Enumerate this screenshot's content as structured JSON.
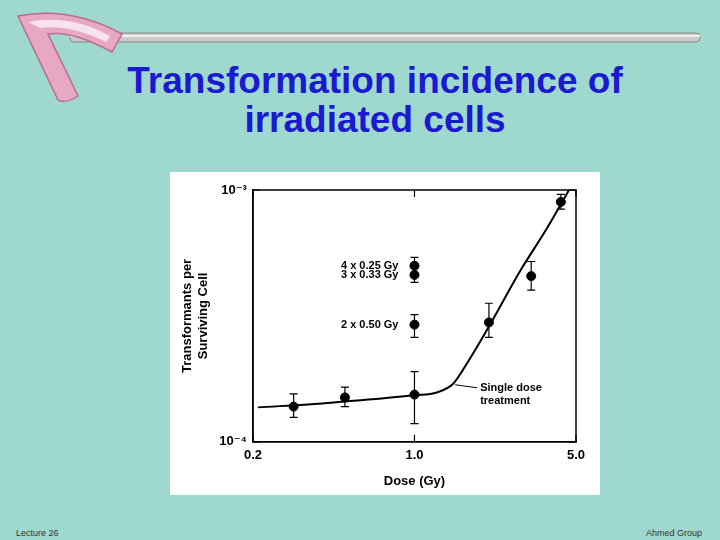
{
  "chart_data": {
    "type": "scatter",
    "title": "Transformation incidence of irradiated cells",
    "x_label": "Dose (Gy)",
    "y_label": [
      "Transformants per",
      "Surviving Cell"
    ],
    "log": true,
    "grid": false,
    "xlim": [
      0.2,
      5
    ],
    "xticks": [
      0.2,
      {
        "value": 1,
        "label": "1.0"
      },
      {
        "value": 5,
        "label": "5.0"
      }
    ],
    "ylim": [
      0.0001,
      0.001
    ],
    "yticks": [
      {
        "value": 0.0001,
        "label": "10⁻⁴"
      },
      {
        "value": 0.001,
        "label": "10⁻³"
      }
    ],
    "series": [
      {
        "type": "line",
        "color": "#000000",
        "marker": "none",
        "line_style": "solid",
        "x": [
          0.21,
          0.4,
          0.68,
          1.0,
          1.25,
          1.47,
          1.71,
          2.1,
          2.87,
          3.71,
          4.42,
          4.66
        ],
        "values": [
          0.000137,
          0.000142,
          0.000148,
          0.000153,
          0.000157,
          0.00017,
          0.000209,
          0.000287,
          0.000478,
          0.000695,
          0.000916,
          0.001
        ]
      },
      {
        "type": "scatter",
        "color": "#000000",
        "marker": "circle",
        "x": [
          0.3,
          0.5,
          1.0,
          2.1,
          3.2,
          4.3
        ],
        "values": [
          0.000138,
          0.00015,
          0.000154,
          0.000298,
          0.000455,
          0.000897
        ],
        "y_low": [
          0.000125,
          0.000138,
          0.000118,
          0.00026,
          0.0004,
          0.00084
        ],
        "y_high": [
          0.000155,
          0.000165,
          0.00019,
          0.000355,
          0.00052,
          0.00096
        ]
      },
      {
        "type": "scatter",
        "color": "#000000",
        "marker": "circle",
        "x": [
          1.0,
          1.0,
          1.0
        ],
        "values": [
          0.0005,
          0.00046,
          0.000292
        ],
        "y_low": [
          0.00046,
          0.00043,
          0.00026
        ],
        "y_high": [
          0.00054,
          0.0005,
          0.00032
        ],
        "point_labels": [
          "4 x 0.25 Gy",
          "3 x 0.33 Gy",
          "2 x 0.50 Gy"
        ]
      }
    ],
    "annotations": [
      {
        "text": [
          "Single dose",
          "treatment"
        ],
        "x": 1.47,
        "y": 0.00017
      }
    ]
  },
  "footer": [
    "Lecture 26",
    "Ahmed Group"
  ]
}
